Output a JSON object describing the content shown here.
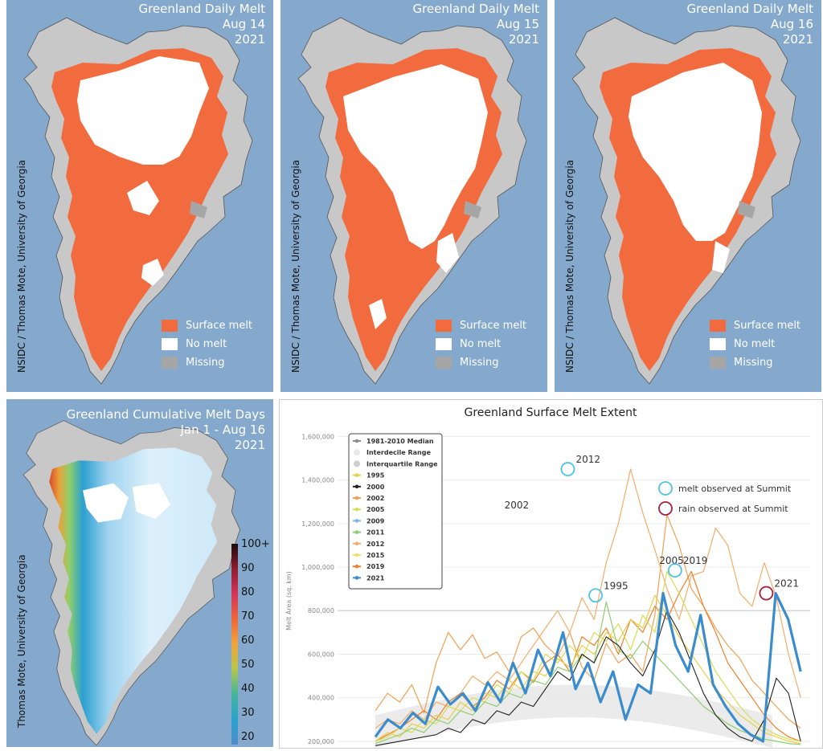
{
  "daily_maps": [
    {
      "title": "Greenland Daily Melt",
      "date": "Aug 14",
      "year": "2021",
      "credit": "NSIDC / Thomas Mote, University of Georgia"
    },
    {
      "title": "Greenland Daily Melt",
      "date": "Aug 15",
      "year": "2021",
      "credit": "NSIDC / Thomas Mote, University of Georgia"
    },
    {
      "title": "Greenland Daily Melt",
      "date": "Aug 16",
      "year": "2021",
      "credit": "NSIDC / Thomas Mote, University of Georgia"
    }
  ],
  "map_legend": {
    "surface_melt": "Surface melt",
    "no_melt": "No melt",
    "missing": "Missing"
  },
  "cumulative_map": {
    "title": "Greenland Cumulative Melt Days",
    "range": "Jan 1 - Aug 16",
    "year": "2021",
    "credit": "Thomas Mote, University of Georgia",
    "colorbar_ticks": [
      "100+",
      "90",
      "80",
      "70",
      "60",
      "50",
      "40",
      "30",
      "20"
    ]
  },
  "colors": {
    "ocean": "#85a9cc",
    "land": "#c8c8c8",
    "surface_melt": "#f26b3f",
    "no_melt": "#ffffff",
    "missing": "#a6a6a6",
    "series_2021": "#3a8ccd",
    "summit_melt": "#4dc3e6",
    "summit_rain": "#a5203a"
  },
  "chart_data": {
    "type": "line",
    "title": "Greenland Surface Melt Extent",
    "ylabel": "Melt Area (sq. km)",
    "xlabel": "",
    "ylim": [
      170000,
      1620000
    ],
    "y_ticks": [
      "1,600,000",
      "1,400,000",
      "1,200,000",
      "1,000,000",
      "800,000",
      "600,000",
      "400,000",
      "200,000"
    ],
    "y_tick_values": [
      1600000,
      1400000,
      1200000,
      1000000,
      800000,
      600000,
      400000,
      200000
    ],
    "legend_position": "top-left",
    "legend": [
      {
        "name": "1981-2010 Median",
        "color": "#8c8c8c",
        "marker": "line"
      },
      {
        "name": "Interdecile Range",
        "color": "#e8e8e8",
        "marker": "dot"
      },
      {
        "name": "Interquartile Range",
        "color": "#cfcfcf",
        "marker": "dot"
      },
      {
        "name": "1995",
        "color": "#e8cf4a",
        "marker": "line"
      },
      {
        "name": "2000",
        "color": "#222222",
        "marker": "line"
      },
      {
        "name": "2002",
        "color": "#f2a153",
        "marker": "line"
      },
      {
        "name": "2005",
        "color": "#d6dd55",
        "marker": "line"
      },
      {
        "name": "2009",
        "color": "#7fb6e3",
        "marker": "line"
      },
      {
        "name": "2011",
        "color": "#8fce72",
        "marker": "line"
      },
      {
        "name": "2012",
        "color": "#f4ad6a",
        "marker": "line"
      },
      {
        "name": "2015",
        "color": "#f0e16a",
        "marker": "line"
      },
      {
        "name": "2019",
        "color": "#ef7f2b",
        "marker": "line"
      },
      {
        "name": "2021",
        "color": "#3a8ccd",
        "marker": "line"
      }
    ],
    "annotations": [
      {
        "text": "melt observed at Summit",
        "marker": "circle",
        "color": "#4dc3e6"
      },
      {
        "text": "rain observed at Summit",
        "marker": "circle",
        "color": "#a5203a"
      }
    ],
    "peak_labels": [
      {
        "text": "2002",
        "t": 0.4,
        "y": 1240000
      },
      {
        "text": "2012",
        "t": 0.58,
        "y": 1450000,
        "summit": "melt"
      },
      {
        "text": "1995",
        "t": 0.65,
        "y": 870000,
        "summit": "melt"
      },
      {
        "text": "2005",
        "t": 0.79,
        "y": 985000
      },
      {
        "text": "2019",
        "t": 0.85,
        "y": 985000,
        "summit": "melt"
      },
      {
        "text": "2021",
        "t": 1.08,
        "y": 880000,
        "summit": "rain"
      }
    ],
    "series": [
      {
        "name": "2002",
        "color": "#f2a153",
        "width": 1.2,
        "values": [
          340000,
          420000,
          380000,
          460000,
          330000,
          560000,
          700000,
          620000,
          690000,
          580000,
          610000,
          520000,
          680000,
          720000,
          640000,
          590000,
          700000,
          540000,
          480000,
          650000,
          560000,
          600000,
          520000,
          780000,
          1240000,
          1100000,
          900000,
          820000,
          720000,
          640000,
          580000,
          480000,
          420000,
          360000,
          300000,
          260000
        ]
      },
      {
        "name": "2012",
        "color": "#f4ad6a",
        "width": 1.2,
        "values": [
          260000,
          300000,
          280000,
          340000,
          300000,
          380000,
          360000,
          420000,
          500000,
          460000,
          520000,
          480000,
          560000,
          640000,
          720000,
          800000,
          700000,
          860000,
          760000,
          1020000,
          1200000,
          1450000,
          1250000,
          1080000,
          900000,
          760000,
          960000,
          980000,
          1180000,
          1100000,
          880000,
          820000,
          1020000,
          860000,
          600000,
          400000
        ]
      },
      {
        "name": "2019",
        "color": "#ef7f2b",
        "width": 1.2,
        "values": [
          200000,
          230000,
          260000,
          300000,
          340000,
          300000,
          380000,
          420000,
          360000,
          400000,
          480000,
          440000,
          520000,
          470000,
          560000,
          600000,
          520000,
          680000,
          640000,
          720000,
          600000,
          760000,
          700000,
          820000,
          760000,
          880000,
          980000,
          820000,
          700000,
          560000,
          480000,
          400000,
          320000,
          260000,
          220000,
          200000
        ]
      },
      {
        "name": "2005",
        "color": "#d6dd55",
        "width": 1.2,
        "values": [
          200000,
          220000,
          260000,
          240000,
          300000,
          280000,
          360000,
          340000,
          400000,
          380000,
          460000,
          420000,
          520000,
          480000,
          600000,
          560000,
          640000,
          580000,
          700000,
          660000,
          740000,
          620000,
          780000,
          700000,
          980000,
          880000,
          760000,
          640000,
          520000,
          440000,
          360000,
          300000,
          260000,
          230000,
          210000,
          200000
        ]
      },
      {
        "name": "1995",
        "color": "#e8cf4a",
        "width": 1.2,
        "values": [
          200000,
          240000,
          220000,
          280000,
          260000,
          320000,
          300000,
          380000,
          340000,
          420000,
          400000,
          480000,
          440000,
          520000,
          500000,
          580000,
          540000,
          640000,
          600000,
          700000,
          660000,
          760000,
          720000,
          870000,
          780000,
          680000,
          600000,
          520000,
          440000,
          380000,
          320000,
          280000,
          240000,
          220000,
          200000,
          190000
        ]
      },
      {
        "name": "2011",
        "color": "#8fce72",
        "width": 1.2,
        "values": [
          190000,
          210000,
          230000,
          260000,
          240000,
          300000,
          280000,
          340000,
          320000,
          380000,
          360000,
          420000,
          400000,
          480000,
          460000,
          540000,
          520000,
          600000,
          560000,
          840000,
          620000,
          580000,
          660000,
          600000,
          540000,
          480000,
          420000,
          360000,
          320000,
          280000,
          250000,
          230000,
          210000,
          200000,
          190000,
          185000
        ]
      },
      {
        "name": "2000",
        "color": "#222222",
        "width": 1.1,
        "values": [
          180000,
          190000,
          200000,
          210000,
          220000,
          230000,
          260000,
          240000,
          300000,
          280000,
          340000,
          320000,
          380000,
          360000,
          440000,
          520000,
          480000,
          600000,
          560000,
          680000,
          640000,
          560000,
          500000,
          620000,
          800000,
          700000,
          560000,
          420000,
          320000,
          260000,
          220000,
          200000,
          300000,
          490000,
          420000,
          200000
        ]
      },
      {
        "name": "2021",
        "color": "#3a8ccd",
        "width": 3.2,
        "values": [
          220000,
          300000,
          260000,
          330000,
          280000,
          450000,
          370000,
          420000,
          340000,
          470000,
          380000,
          560000,
          420000,
          620000,
          500000,
          700000,
          440000,
          560000,
          380000,
          520000,
          300000,
          460000,
          420000,
          880000,
          640000,
          520000,
          780000,
          460000,
          360000,
          280000,
          230000,
          200000,
          880000,
          760000,
          520000
        ]
      }
    ]
  }
}
